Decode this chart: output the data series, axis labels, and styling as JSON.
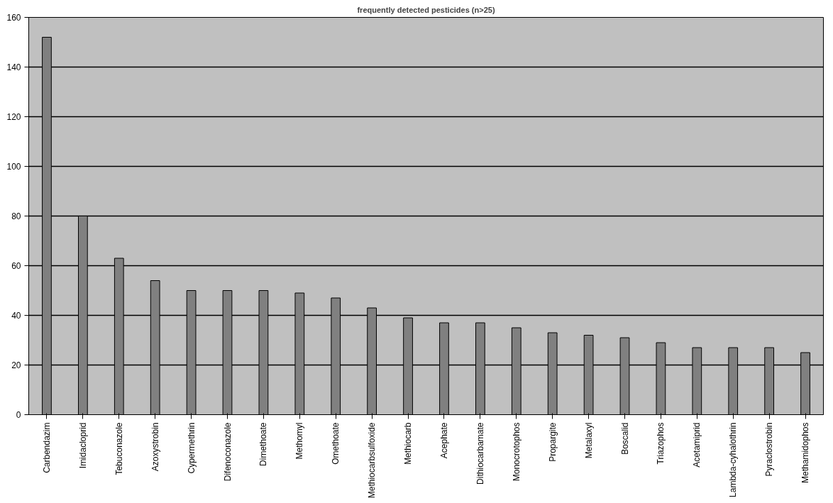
{
  "chart_data": {
    "type": "bar",
    "title": "frequently detected pesticides (n>25)",
    "categories": [
      "Carbendazim",
      "Imidacloprid",
      "Tebuconazole",
      "Azoxystrobin",
      "Cypermethrin",
      "Difenoconazole",
      "Dimethoate",
      "Methomyl",
      "Omethoate",
      "Methiocarbsulfoxide",
      "Methiocarb",
      "Acephate",
      "Dithiocarbamate",
      "Monocrotophos",
      "Propargite",
      "Metalaxyl",
      "Boscalid",
      "Triazophos",
      "Acetamiprid",
      "Lambda-cyhalothrin",
      "Pyraclostrobin",
      "Methamidophos"
    ],
    "values": [
      152,
      80,
      63,
      54,
      50,
      50,
      50,
      49,
      47,
      43,
      39,
      37,
      37,
      35,
      33,
      32,
      31,
      29,
      27,
      27,
      27,
      25
    ],
    "color": "#808080",
    "ylim": [
      0,
      160
    ],
    "yticks": [
      0,
      20,
      40,
      60,
      80,
      100,
      120,
      140,
      160
    ],
    "grid": "y"
  }
}
